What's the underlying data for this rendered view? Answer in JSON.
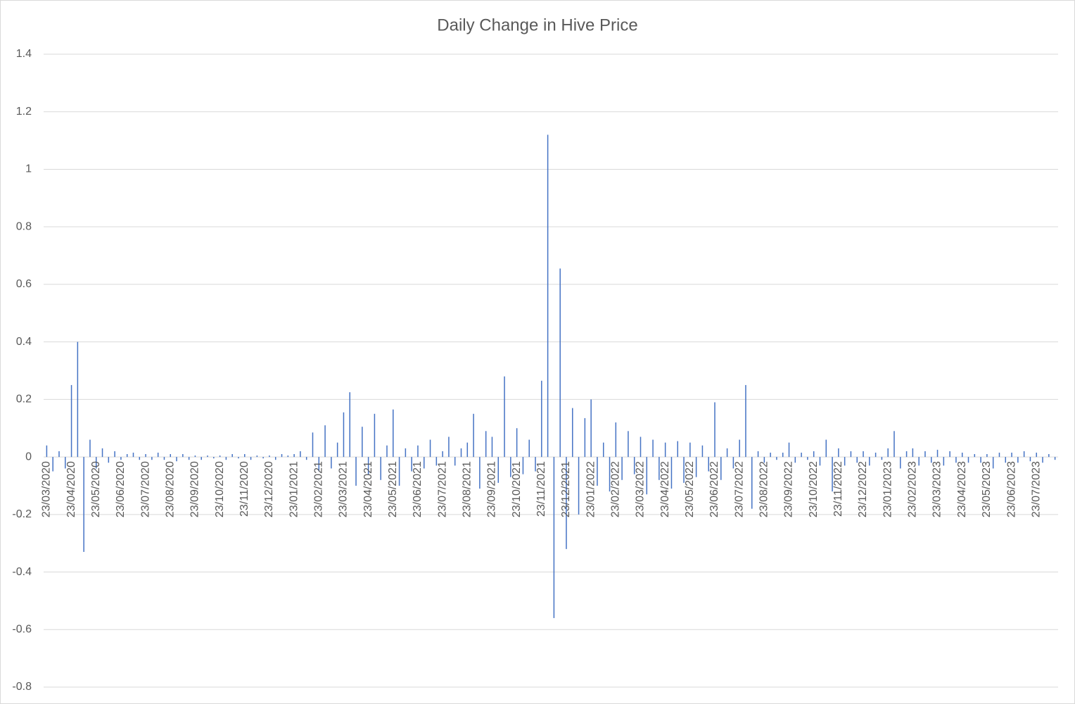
{
  "chart_data": {
    "type": "bar",
    "title": "Daily Change in Hive Price",
    "categories": [
      "23/03/2020",
      null,
      null,
      null,
      "23/04/2020",
      null,
      null,
      null,
      "23/05/2020",
      null,
      null,
      null,
      "23/06/2020",
      null,
      null,
      null,
      "23/07/2020",
      null,
      null,
      null,
      "23/08/2020",
      null,
      null,
      null,
      "23/09/2020",
      null,
      null,
      null,
      "23/10/2020",
      null,
      null,
      null,
      "23/11/2020",
      null,
      null,
      null,
      "23/12/2020",
      null,
      null,
      null,
      "23/01/2021",
      null,
      null,
      null,
      "23/02/2021",
      null,
      null,
      null,
      "23/03/2021",
      null,
      null,
      null,
      "23/04/2021",
      null,
      null,
      null,
      "23/05/2021",
      null,
      null,
      null,
      "23/06/2021",
      null,
      null,
      null,
      "23/07/2021",
      null,
      null,
      null,
      "23/08/2021",
      null,
      null,
      null,
      "23/09/2021",
      null,
      null,
      null,
      "23/10/2021",
      null,
      null,
      null,
      "23/11/2021",
      null,
      null,
      null,
      "23/12/2021",
      null,
      null,
      null,
      "23/01/2022",
      null,
      null,
      null,
      "23/02/2022",
      null,
      null,
      null,
      "23/03/2022",
      null,
      null,
      null,
      "23/04/2022",
      null,
      null,
      null,
      "23/05/2022",
      null,
      null,
      null,
      "23/06/2022",
      null,
      null,
      null,
      "23/07/2022",
      null,
      null,
      null,
      "23/08/2022",
      null,
      null,
      null,
      "23/09/2022",
      null,
      null,
      null,
      "23/10/2022",
      null,
      null,
      null,
      "23/11/2022",
      null,
      null,
      null,
      "23/12/2022",
      null,
      null,
      null,
      "23/01/2023",
      null,
      null,
      null,
      "23/02/2023",
      null,
      null,
      null,
      "23/03/2023",
      null,
      null,
      null,
      "23/04/2023",
      null,
      null,
      null,
      "23/05/2023",
      null,
      null,
      null,
      "23/06/2023",
      null,
      null,
      null,
      "23/07/2023",
      null,
      null,
      null
    ],
    "values": [
      0.04,
      -0.05,
      0.02,
      -0.04,
      0.25,
      0.4,
      -0.33,
      0.06,
      -0.04,
      0.03,
      -0.02,
      0.02,
      -0.01,
      0.01,
      0.015,
      -0.01,
      0.01,
      -0.01,
      0.015,
      -0.01,
      0.01,
      -0.015,
      0.01,
      -0.01,
      0.005,
      -0.01,
      0.005,
      -0.005,
      0.005,
      -0.01,
      0.01,
      -0.005,
      0.01,
      -0.01,
      0.005,
      -0.005,
      0.005,
      -0.01,
      0.01,
      0.005,
      0.01,
      0.02,
      -0.01,
      0.085,
      -0.05,
      0.11,
      -0.04,
      0.05,
      0.155,
      0.225,
      -0.1,
      0.105,
      -0.06,
      0.15,
      -0.08,
      0.04,
      0.165,
      -0.1,
      0.03,
      -0.05,
      0.04,
      -0.04,
      0.06,
      -0.03,
      0.02,
      0.07,
      -0.03,
      0.03,
      0.05,
      0.15,
      -0.11,
      0.09,
      0.07,
      -0.09,
      0.28,
      -0.07,
      0.1,
      -0.06,
      0.06,
      -0.05,
      0.265,
      1.12,
      -0.56,
      0.655,
      -0.32,
      0.17,
      -0.2,
      0.135,
      0.2,
      -0.1,
      0.05,
      -0.12,
      0.12,
      -0.08,
      0.09,
      -0.06,
      0.07,
      -0.13,
      0.06,
      -0.08,
      0.05,
      -0.11,
      0.055,
      -0.09,
      0.05,
      -0.07,
      0.04,
      -0.05,
      0.19,
      -0.08,
      0.03,
      -0.04,
      0.06,
      0.25,
      -0.18,
      0.02,
      -0.02,
      0.015,
      -0.01,
      0.015,
      0.05,
      -0.02,
      0.015,
      -0.01,
      0.02,
      -0.03,
      0.06,
      -0.12,
      0.03,
      -0.03,
      0.02,
      -0.02,
      0.02,
      -0.03,
      0.015,
      -0.01,
      0.03,
      0.09,
      -0.04,
      0.02,
      0.03,
      -0.03,
      0.02,
      -0.02,
      0.025,
      -0.03,
      0.02,
      -0.02,
      0.015,
      -0.02,
      0.01,
      -0.02,
      0.01,
      -0.04,
      0.015,
      -0.02,
      0.015,
      -0.02,
      0.02,
      -0.015,
      0.015,
      -0.02,
      0.01,
      -0.01
    ],
    "color": "#4472c4",
    "ylim": [
      -0.8,
      1.4
    ],
    "yticks": [
      -0.8,
      -0.6,
      -0.4,
      -0.2,
      0,
      0.2,
      0.4,
      0.6,
      0.8,
      1,
      1.2,
      1.4
    ],
    "grid": true
  }
}
